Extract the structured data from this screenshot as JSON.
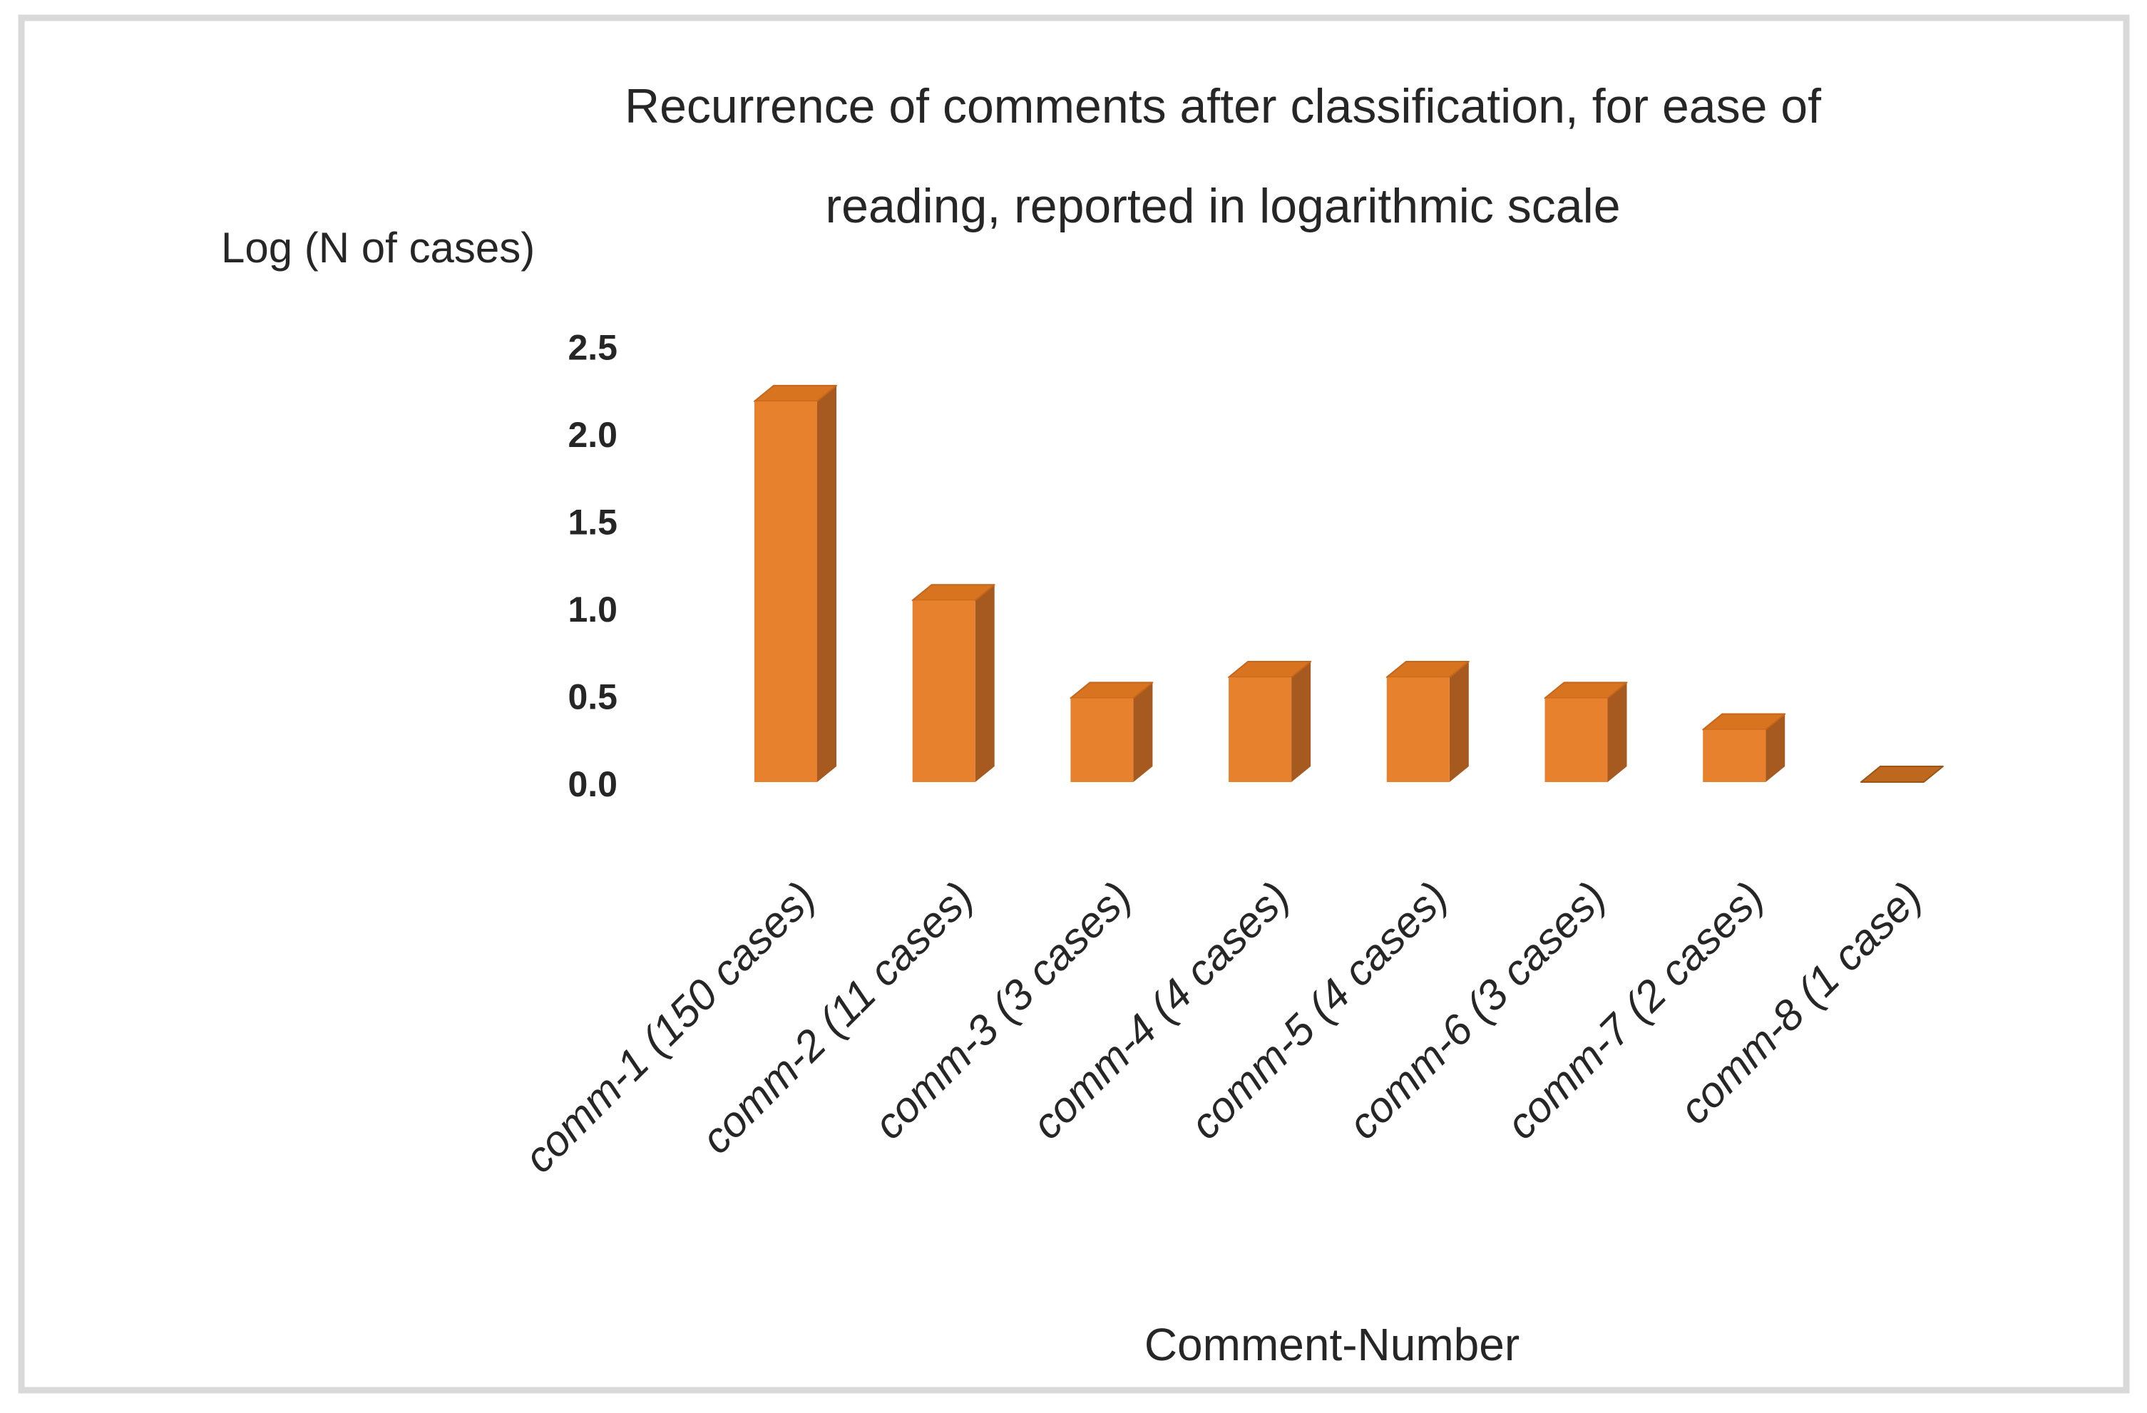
{
  "page": {
    "background_color": "#ffffff",
    "frame_border_color": "#d9d9d9"
  },
  "chart": {
    "title_line1": "Recurrence of  comments after classification, for ease of",
    "title_line2": "reading, reported in logarithmic scale",
    "y_axis_title": "Log (N of cases)",
    "x_axis_title": "Comment-Number"
  },
  "chart_data": {
    "type": "bar",
    "style": "3d-box",
    "title": "Recurrence of comments after classification, for ease of reading, reported in logarithmic scale",
    "xlabel": "Comment-Number",
    "ylabel": "Log (N of cases)",
    "categories": [
      "comm-1 (150 cases)",
      "comm-2 (11 cases)",
      "comm-3 (3 cases)",
      "comm-4 (4 cases)",
      "comm-5 (4 cases)",
      "comm-6 (3 cases)",
      "comm-7 (2 cases)",
      "comm-8 (1 case)"
    ],
    "values": [
      2.18,
      1.04,
      0.48,
      0.6,
      0.6,
      0.48,
      0.3,
      0.0
    ],
    "n_cases": [
      150,
      11,
      3,
      4,
      4,
      3,
      2,
      1
    ],
    "ylim": [
      0,
      2.5
    ],
    "ytick_labels": [
      "2.5",
      "2.0",
      "1.5",
      "1.0",
      "0.5",
      "0.0"
    ],
    "ytick_values": [
      2.5,
      2.0,
      1.5,
      1.0,
      0.5,
      0.0
    ],
    "grid": false,
    "legend": false,
    "x_labels_rotation_deg": -45,
    "colors": {
      "bar_front": "#e8812d",
      "bar_side": "#a75a20",
      "bar_top": "#d8741f",
      "bar_top_edge": "#c4661c",
      "bar_flat": "#be671e",
      "bar_flat_edge": "#9a5517",
      "text": "#262626"
    }
  }
}
